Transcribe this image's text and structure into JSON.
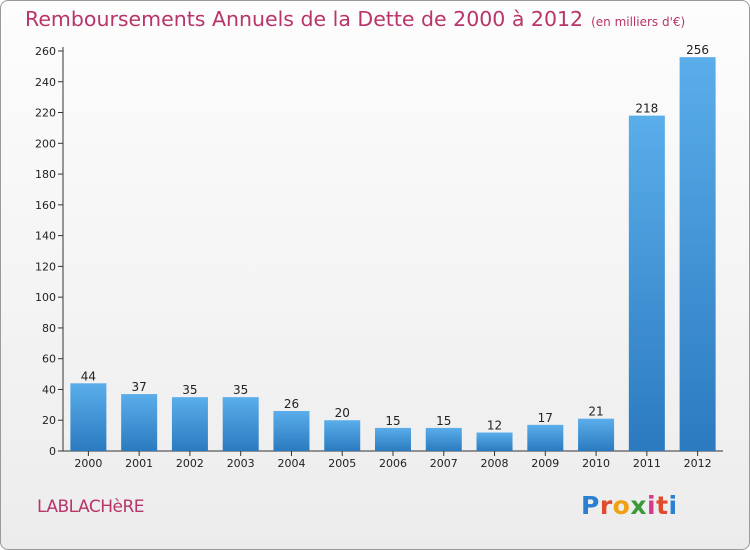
{
  "header": {
    "title": "Remboursements Annuels de la Dette de 2000 à 2012",
    "subtitle": "(en milliers d'€)"
  },
  "footer": {
    "commune": "LABLACHèRE",
    "logo_letters": [
      "P",
      "r",
      "o",
      "x",
      "i",
      "t",
      "i"
    ],
    "logo_colors": [
      "#2a7fd0",
      "#e04a2f",
      "#f0a010",
      "#3a9a3a",
      "#d83a8a",
      "#e04a2f",
      "#2a7fd0"
    ]
  },
  "chart_data": {
    "type": "bar",
    "categories": [
      "2000",
      "2001",
      "2002",
      "2003",
      "2004",
      "2005",
      "2006",
      "2007",
      "2008",
      "2009",
      "2010",
      "2011",
      "2012"
    ],
    "values": [
      44,
      37,
      35,
      35,
      26,
      20,
      15,
      15,
      12,
      17,
      21,
      218,
      256
    ],
    "ylim": [
      0,
      260
    ],
    "yticks": [
      0,
      20,
      40,
      60,
      80,
      100,
      120,
      140,
      160,
      180,
      200,
      220,
      240,
      260
    ],
    "grid": false,
    "bar_color": "#4a9fe0",
    "bar_color_dark": "#2a78c0"
  }
}
